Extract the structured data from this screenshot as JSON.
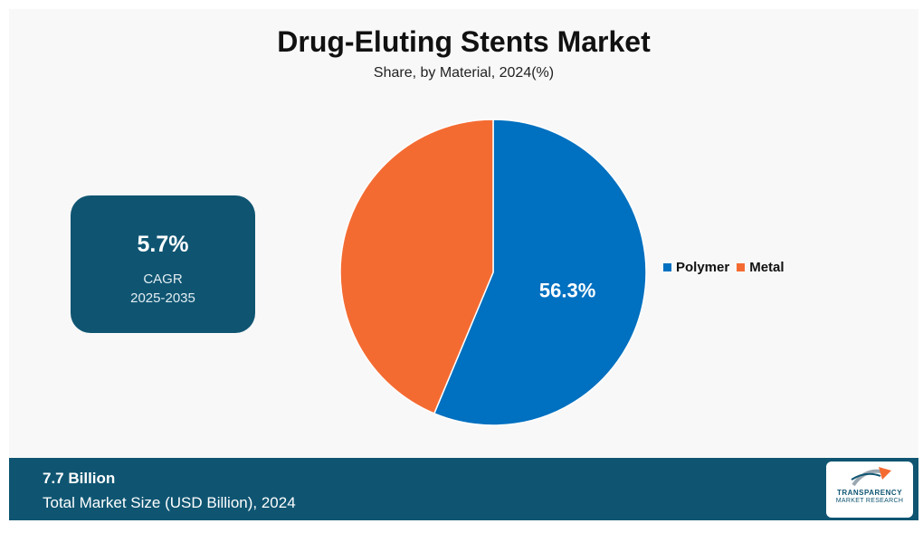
{
  "title": "Drug-Eluting Stents Market",
  "subtitle": "Share, by Material, 2024(%)",
  "cagr": {
    "value": "5.7%",
    "label": "CAGR",
    "period": "2025-2035"
  },
  "footer": {
    "value": "7.7 Billion",
    "label": "Total Market Size (USD Billion), 2024"
  },
  "logo": {
    "line1": "TRANSPARENCY",
    "line2": "MARKET RESEARCH"
  },
  "colors": {
    "polymer": "#0070c0",
    "metal": "#f46b32",
    "panel": "#0f5572"
  },
  "chart_data": {
    "type": "pie",
    "title": "Drug-Eluting Stents Market",
    "subtitle": "Share, by Material, 2024(%)",
    "categories": [
      "Polymer",
      "Metal"
    ],
    "values": [
      56.3,
      43.7
    ],
    "data_labels": [
      "56.3%",
      ""
    ],
    "legend": "right",
    "series": [
      {
        "name": "Polymer",
        "value": 56.3,
        "color": "#0070c0"
      },
      {
        "name": "Metal",
        "value": 43.7,
        "color": "#f46b32"
      }
    ]
  }
}
